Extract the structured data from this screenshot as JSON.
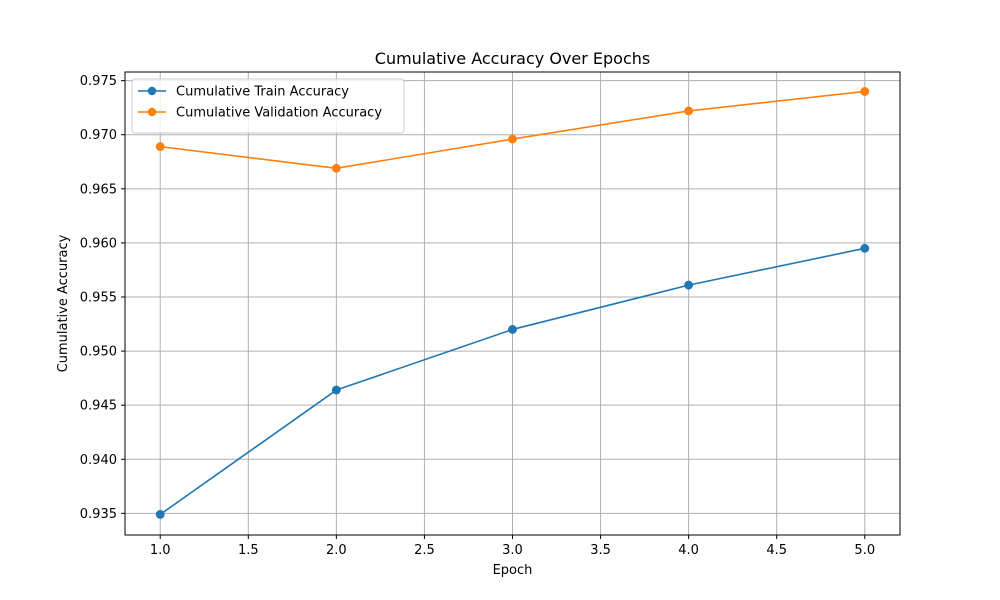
{
  "chart_data": {
    "type": "line",
    "title": "Cumulative Accuracy Over Epochs",
    "xlabel": "Epoch",
    "ylabel": "Cumulative Accuracy",
    "x": [
      1,
      2,
      3,
      4,
      5
    ],
    "xlim": [
      0.8,
      5.2
    ],
    "ylim": [
      0.933,
      0.9758
    ],
    "xticks": [
      1.0,
      1.5,
      2.0,
      2.5,
      3.0,
      3.5,
      4.0,
      4.5,
      5.0
    ],
    "yticks": [
      0.935,
      0.94,
      0.945,
      0.95,
      0.955,
      0.96,
      0.965,
      0.97,
      0.975
    ],
    "xtick_labels": [
      "1.0",
      "1.5",
      "2.0",
      "2.5",
      "3.0",
      "3.5",
      "4.0",
      "4.5",
      "5.0"
    ],
    "ytick_labels": [
      "0.935",
      "0.940",
      "0.945",
      "0.950",
      "0.955",
      "0.960",
      "0.965",
      "0.970",
      "0.975"
    ],
    "grid": true,
    "legend_position": "top-left",
    "series": [
      {
        "name": "Cumulative Train Accuracy",
        "color": "#1f77b4",
        "marker": "circle",
        "values": [
          0.9349,
          0.9464,
          0.952,
          0.9561,
          0.9595
        ]
      },
      {
        "name": "Cumulative Validation Accuracy",
        "color": "#ff7f0e",
        "marker": "circle",
        "values": [
          0.9689,
          0.9669,
          0.9696,
          0.9722,
          0.974
        ]
      }
    ]
  }
}
